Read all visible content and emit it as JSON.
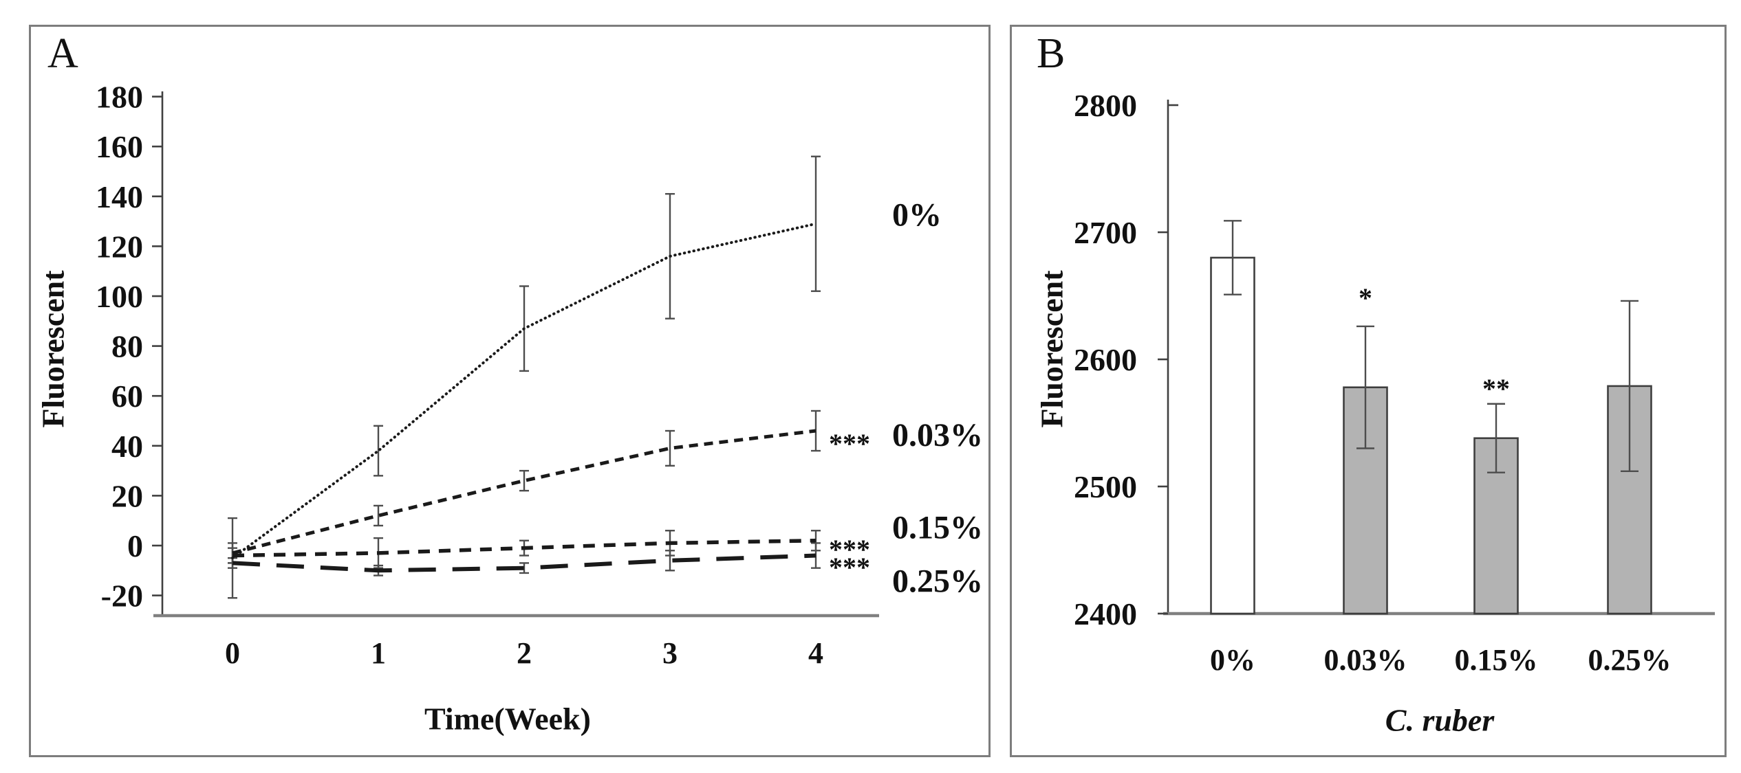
{
  "figure": {
    "background": "#ffffff",
    "border_color": "#7d7d7d",
    "line_color": "#1a1a1a",
    "error_bar_color": "#4d4d4d",
    "axis_color": "#404040",
    "baseline_color": "#808080"
  },
  "chart_data": [
    {
      "type": "line",
      "panel_label": "A",
      "title": "",
      "xlabel": "Time(Week)",
      "ylabel": "Fluorescent",
      "x": [
        0,
        1,
        2,
        3,
        4
      ],
      "xtick_labels": [
        "0",
        "1",
        "2",
        "3",
        "4"
      ],
      "ylim": [
        -20,
        180
      ],
      "ytick_step": 20,
      "yticks": [
        180,
        160,
        140,
        120,
        100,
        80,
        60,
        40,
        20,
        0,
        -20
      ],
      "grid": false,
      "legend_position": "right of line ends",
      "series": [
        {
          "name": "0%",
          "values": [
            -5,
            38,
            87,
            116,
            129
          ],
          "errors": [
            16,
            10,
            17,
            25,
            27
          ],
          "dash": "dotted",
          "sig": ""
        },
        {
          "name": "0.03%",
          "values": [
            -3,
            12,
            26,
            39,
            46
          ],
          "errors": [
            4,
            4,
            4,
            7,
            8
          ],
          "dash": "dash-medium",
          "sig": "***"
        },
        {
          "name": "0.15%",
          "values": [
            -4,
            -3,
            -1,
            1,
            2
          ],
          "errors": [
            3,
            6,
            3,
            5,
            4
          ],
          "dash": "dash-short",
          "sig": "***"
        },
        {
          "name": "0.25%",
          "values": [
            -7,
            -10,
            -9,
            -6,
            -4
          ],
          "errors": [
            2,
            2,
            2,
            4,
            5
          ],
          "dash": "dash-long",
          "sig": "***"
        }
      ]
    },
    {
      "type": "bar",
      "panel_label": "B",
      "title": "",
      "xlabel": "C. ruber",
      "ylabel": "Fluorescent",
      "categories": [
        "0%",
        "0.03%",
        "0.15%",
        "0.25%"
      ],
      "values": [
        2680,
        2578,
        2538,
        2579
      ],
      "errors": [
        29,
        48,
        27,
        67
      ],
      "sig": [
        "",
        "*",
        "**",
        ""
      ],
      "bar_fills": [
        "#ffffff",
        "#b3b3b3",
        "#b3b3b3",
        "#b3b3b3"
      ],
      "bar_stroke": "#3f3f3f",
      "ylim": [
        2400,
        2800
      ],
      "ytick_step": 100,
      "yticks": [
        2800,
        2700,
        2600,
        2500,
        2400
      ],
      "grid": false
    }
  ]
}
